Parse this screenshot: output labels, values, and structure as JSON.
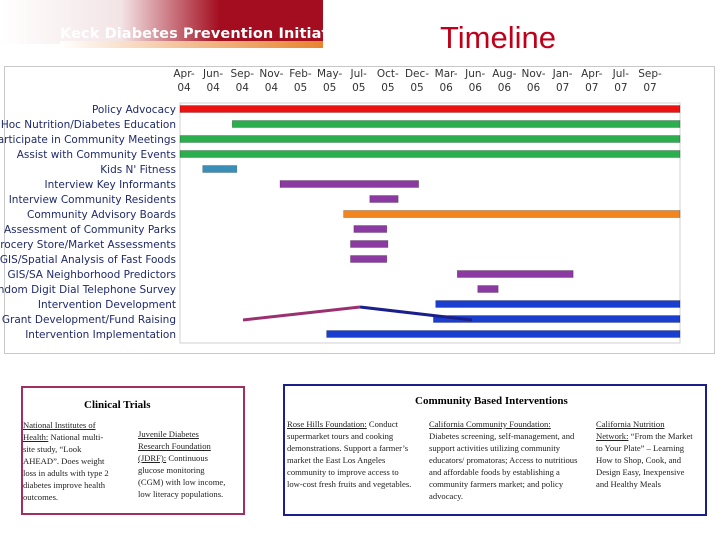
{
  "header": {
    "org_name": "Keck Diabetes Prevention Initiative",
    "page_title": "Timeline",
    "colors": {
      "banner": "#a30d1f",
      "title": "#c0001a"
    }
  },
  "chart_data": {
    "type": "gantt",
    "timeline_labels": [
      [
        "Apr-",
        "04"
      ],
      [
        "Jun-",
        "04"
      ],
      [
        "Sep-",
        "04"
      ],
      [
        "Nov-",
        "04"
      ],
      [
        "Feb-",
        "05"
      ],
      [
        "May-",
        "05"
      ],
      [
        "Jul-",
        "05"
      ],
      [
        "Oct-",
        "05"
      ],
      [
        "Dec-",
        "05"
      ],
      [
        "Mar-",
        "06"
      ],
      [
        "Jun-",
        "06"
      ],
      [
        "Aug-",
        "06"
      ],
      [
        "Nov-",
        "06"
      ],
      [
        "Jan-",
        "07"
      ],
      [
        "Apr-",
        "07"
      ],
      [
        "Jul-",
        "07"
      ],
      [
        "Sep-",
        "07"
      ]
    ],
    "x_start_month_index": 0,
    "x_end_month_index": 44,
    "tasks": [
      {
        "label": "Policy Advocacy",
        "start": 0,
        "end": 44,
        "color": "#ee1111"
      },
      {
        "label": "Ad Hoc Nutrition/Diabetes Education",
        "start": 4.6,
        "end": 44,
        "color": "#2bae4d"
      },
      {
        "label": "Participate in Community Meetings",
        "start": 0,
        "end": 44,
        "color": "#2bae4d"
      },
      {
        "label": "Assist with Community Events",
        "start": 0,
        "end": 44,
        "color": "#2bae4d"
      },
      {
        "label": "Kids N' Fitness",
        "start": 2.0,
        "end": 5.0,
        "color": "#3a8fb8"
      },
      {
        "label": "Interview Key Informants",
        "start": 8.8,
        "end": 21.0,
        "color": "#8b3aa2"
      },
      {
        "label": "Interview Community Residents",
        "start": 16.7,
        "end": 19.2,
        "color": "#8b3aa2"
      },
      {
        "label": "Community Advisory Boards",
        "start": 14.4,
        "end": 44,
        "color": "#f2851e"
      },
      {
        "label": "Assessment of Community Parks",
        "start": 15.3,
        "end": 18.2,
        "color": "#8b3aa2"
      },
      {
        "label": "Grocery Store/Market Assessments",
        "start": 15.0,
        "end": 18.3,
        "color": "#8b3aa2"
      },
      {
        "label": "GIS/Spatial Analysis of Fast Foods",
        "start": 15.0,
        "end": 18.2,
        "color": "#8b3aa2"
      },
      {
        "label": "GIS/SA Neighborhood Predictors",
        "start": 24.4,
        "end": 34.6,
        "color": "#8b3aa2"
      },
      {
        "label": "Random Digit Dial Telephone Survey",
        "start": 26.2,
        "end": 28.0,
        "color": "#8b3aa2"
      },
      {
        "label": "Intervention Development",
        "start": 22.5,
        "end": 44,
        "color": "#1a3fd0"
      },
      {
        "label": "Grant Development/Fund Raising",
        "start": 22.3,
        "end": 44,
        "color": "#1a3fd0"
      },
      {
        "label": "Intervention Implementation",
        "start": 12.9,
        "end": 44,
        "color": "#1a3fd0"
      }
    ]
  },
  "clinical_trials": {
    "title": "Clinical Trials",
    "items": [
      {
        "name": "National Institutes of Health:",
        "desc": "National multi-site study, “Look AHEAD”. Does weight loss in adults with type 2 diabetes improve health outcomes."
      },
      {
        "name": "Juvenile Diabetes Research Foundation (JDRF):",
        "desc": "Continuous glucose monitoring (CGM) with low income, low literacy populations."
      }
    ]
  },
  "community_interventions": {
    "title": "Community Based Interventions",
    "items": [
      {
        "name": "Rose Hills Foundation:",
        "desc": "Conduct supermarket tours and cooking demonstrations. Support a farmer’s market the East Los Angeles community to improve access to low-cost fresh fruits and vegetables."
      },
      {
        "name": "California Community Foundation:",
        "desc": "Diabetes screening, self-management, and support activities utilizing community educators/ promatoras; Access to nutritious and affordable foods by establishing a community farmers market; and policy advocacy."
      },
      {
        "name": "California Nutrition Network:",
        "desc": "“From the Market to Your Plate” – Learning How to Shop, Cook, and Design Easy, Inexpensive and Healthy Meals"
      }
    ]
  }
}
